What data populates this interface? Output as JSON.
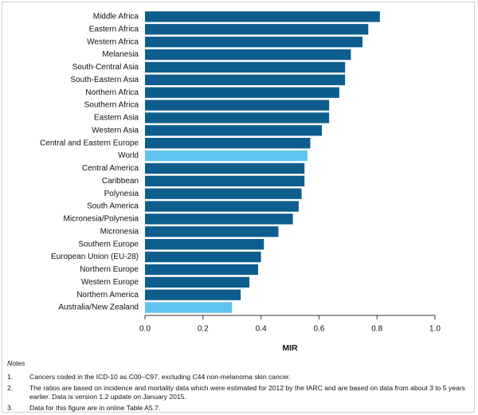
{
  "chart_data": {
    "type": "hbar",
    "x_label": "MIR",
    "categories": [
      "Middle Africa",
      "Eastern Africa",
      "Western Africa",
      "Melanesia",
      "South-Central Asia",
      "South-Eastern Asia",
      "Northern Africa",
      "Southern Africa",
      "Eastern Asia",
      "Western Asia",
      "Central and Eastern Europe",
      "World",
      "Central America",
      "Caribbean",
      "Polynesia",
      "South America",
      "Micronesia/Polynesia",
      "Micronesia",
      "Southern Europe",
      "European Union (EU-28)",
      "Northern Europe",
      "Western Europe",
      "Northern America",
      "Australia/New Zealand"
    ],
    "values": [
      0.81,
      0.77,
      0.75,
      0.71,
      0.69,
      0.69,
      0.67,
      0.635,
      0.635,
      0.61,
      0.57,
      0.56,
      0.55,
      0.55,
      0.54,
      0.53,
      0.51,
      0.46,
      0.41,
      0.4,
      0.39,
      0.36,
      0.33,
      0.3
    ],
    "colors": [
      "#0d5e8e",
      "#0d5e8e",
      "#0d5e8e",
      "#0d5e8e",
      "#0d5e8e",
      "#0d5e8e",
      "#0d5e8e",
      "#0d5e8e",
      "#0d5e8e",
      "#0d5e8e",
      "#0d5e8e",
      "#5fc3ef",
      "#0d5e8e",
      "#0d5e8e",
      "#0d5e8e",
      "#0d5e8e",
      "#0d5e8e",
      "#0d5e8e",
      "#0d5e8e",
      "#0d5e8e",
      "#0d5e8e",
      "#0d5e8e",
      "#0d5e8e",
      "#5fc3ef"
    ],
    "xlim": [
      0,
      1.0
    ],
    "xticks": [
      {
        "value": 0,
        "label": "0.0"
      },
      0.2,
      0.4,
      0.6,
      0.8,
      {
        "value": 1,
        "label": "1.0"
      }
    ]
  },
  "notes": {
    "title": "Notes",
    "items": [
      {
        "number": "1.",
        "text": "Cancers coded in the ICD-10 as C00–C97, excluding C44 non-melanoma skin cancer."
      },
      {
        "number": "2.",
        "text": "The ratios are based on incidence and mortality data which were estimated for 2012 by the IARC and are based on data from about 3 to 5 years earlier. Data is version 1.2 update on January 2015."
      },
      {
        "number": "3.",
        "text": "Data for this figure are in online Table A5.7."
      }
    ]
  }
}
